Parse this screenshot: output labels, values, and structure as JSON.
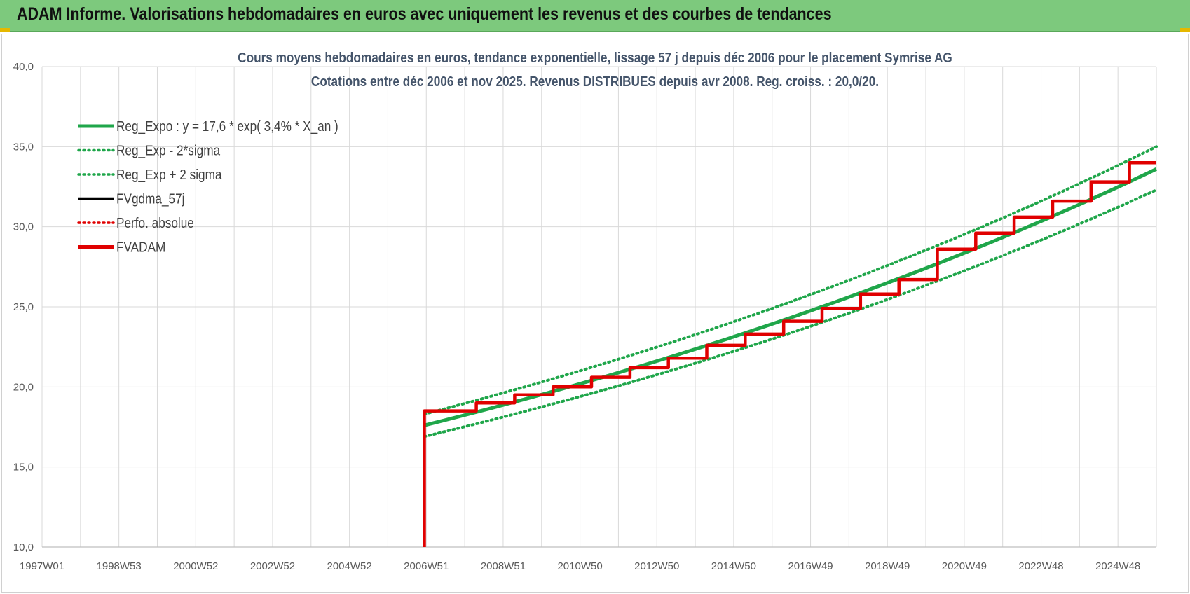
{
  "header": {
    "title": "ADAM Informe. Valorisations hebdomadaires en euros avec uniquement les revenus et des courbes de tendances"
  },
  "chart_data": {
    "type": "line",
    "title": "Cours moyens hebdomadaires en euros, tendance exponentielle, lissage 57 j depuis déc 2006 pour le placement Symrise AG",
    "subtitle": "Cotations entre déc 2006 et nov 2025.  Revenus DISTRIBUES depuis avr 2008. Reg. croiss. : 20,0/20.",
    "xlabel": "",
    "ylabel": "",
    "x_tick_labels": [
      "1997W01",
      "1998W53",
      "2000W52",
      "2002W52",
      "2004W52",
      "2006W51",
      "2008W51",
      "2010W50",
      "2012W50",
      "2014W50",
      "2016W49",
      "2018W49",
      "2020W49",
      "2022W48",
      "2024W48"
    ],
    "x_range_years": [
      1997.0,
      2026.0
    ],
    "ylim": [
      10,
      40
    ],
    "y_ticks": [
      10,
      15,
      20,
      25,
      30,
      35,
      40
    ],
    "y_tick_labels": [
      "10,0",
      "15,0",
      "20,0",
      "25,0",
      "30,0",
      "35,0",
      "40,0"
    ],
    "grid": true,
    "legend_position": "top-left",
    "legend": [
      {
        "name": "Reg_Expo : y = 17,6 * exp( 3,4% *  X_an )",
        "color": "#1fa64a",
        "style": "solid-thick"
      },
      {
        "name": "Reg_Exp - 2*sigma",
        "color": "#1fa64a",
        "style": "dotted"
      },
      {
        "name": "Reg_Exp + 2 sigma",
        "color": "#1fa64a",
        "style": "dotted"
      },
      {
        "name": "FVgdma_57j",
        "color": "#000000",
        "style": "solid"
      },
      {
        "name": "Perfo. absolue",
        "color": "#e00000",
        "style": "dotted"
      },
      {
        "name": "FVADAM",
        "color": "#e00000",
        "style": "solid-thick"
      }
    ],
    "series": [
      {
        "name": "Reg_Expo : y = 17,6 * exp( 3,4% *  X_an )",
        "x": [
          2006.95,
          2010,
          2014,
          2018,
          2022,
          2026
        ],
        "values": [
          17.6,
          19.5,
          22.3,
          25.5,
          29.2,
          33.6
        ]
      },
      {
        "name": "Reg_Exp - 2*sigma",
        "x": [
          2006.95,
          2010,
          2014,
          2018,
          2022,
          2026
        ],
        "values": [
          16.9,
          18.7,
          21.4,
          24.5,
          28.0,
          32.3
        ]
      },
      {
        "name": "Reg_Exp + 2 sigma",
        "x": [
          2006.95,
          2010,
          2014,
          2018,
          2022,
          2026
        ],
        "values": [
          18.3,
          20.3,
          23.2,
          26.5,
          30.4,
          35.0
        ]
      },
      {
        "name": "FVADAM",
        "x": [
          2006.95,
          2006.95,
          2008.3,
          2009.3,
          2010.3,
          2011.3,
          2012.3,
          2013.3,
          2014.3,
          2015.3,
          2016.3,
          2017.3,
          2018.3,
          2019.3,
          2020.3,
          2021.3,
          2022.3,
          2023.3,
          2024.3,
          2025.3,
          2026.0
        ],
        "values": [
          10.0,
          18.5,
          19.0,
          19.5,
          20.0,
          20.6,
          21.2,
          21.8,
          22.6,
          23.3,
          24.1,
          24.9,
          25.8,
          26.7,
          28.6,
          29.6,
          30.6,
          31.6,
          32.8,
          34.0,
          34.0
        ]
      }
    ]
  }
}
